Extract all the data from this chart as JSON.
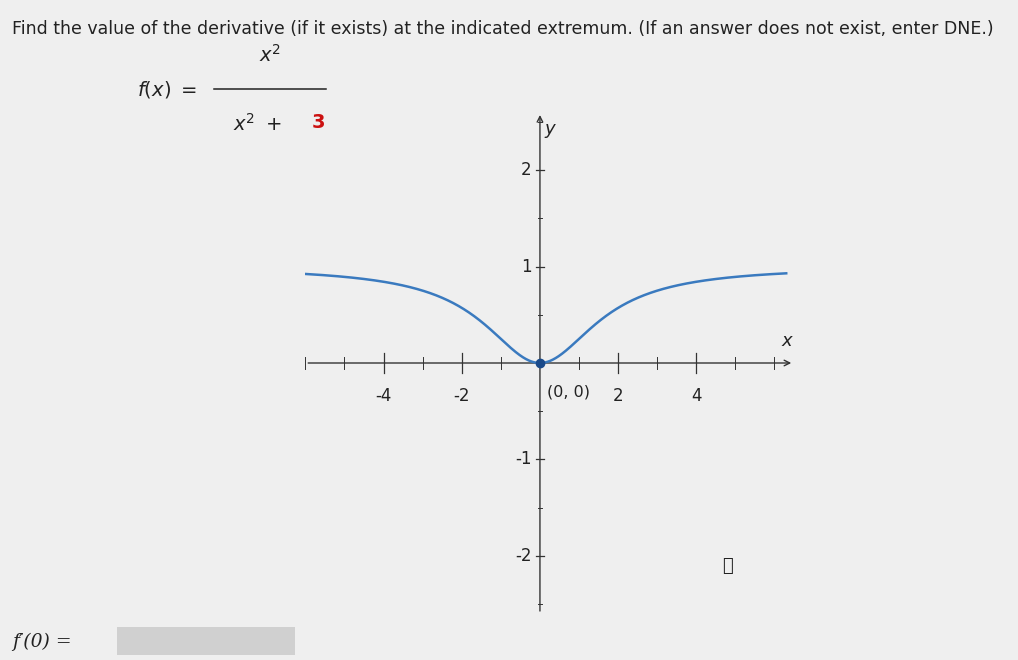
{
  "title": "Find the value of the derivative (if it exists) at the indicated extremum. (If an answer does not exist, enter DNE.)",
  "curve_color": "#3a7abf",
  "curve_linewidth": 1.8,
  "point_color": "#1a4a8a",
  "point_size": 6,
  "xlim": [
    -6.0,
    6.5
  ],
  "ylim": [
    -2.6,
    2.6
  ],
  "xticks": [
    -4,
    -2,
    2,
    4
  ],
  "yticks": [
    -2,
    -1,
    1,
    2
  ],
  "xlabel": "x",
  "ylabel": "y",
  "extremum_label": "(0, 0)",
  "background_color": "#efefef",
  "axis_color": "#333333",
  "tick_color": "#333333",
  "text_color": "#222222",
  "red_color": "#cc1111",
  "answer_label": "f′(0) =",
  "input_box_color": "#d0d0d0"
}
